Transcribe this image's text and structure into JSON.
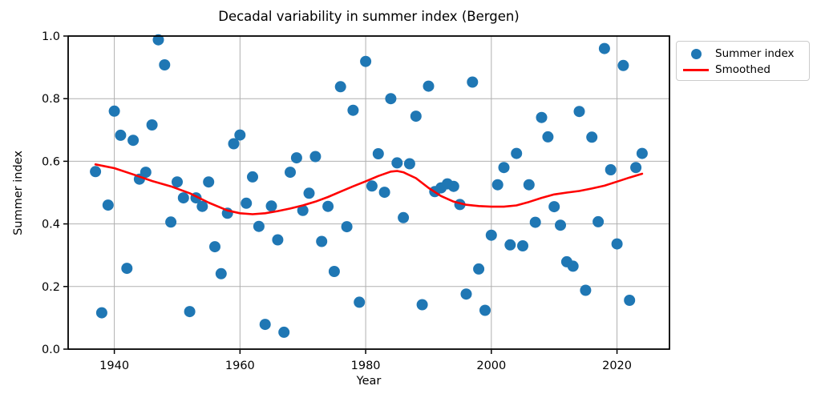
{
  "figure": {
    "title": "Decadal variability in summer index (Bergen)",
    "xlabel": "Year",
    "ylabel": "Summer index"
  },
  "legend": {
    "entries": [
      {
        "label": "Summer index",
        "marker": "dot-icon",
        "color": "#1f77b4"
      },
      {
        "label": "Smoothed",
        "marker": "line-icon",
        "color": "#ff0000"
      }
    ]
  },
  "colors": {
    "scatter": "#1f77b4",
    "smoothed_line": "#ff0000",
    "grid": "#b0b0b0",
    "spine": "#000000",
    "background": "#ffffff"
  },
  "chart_data": {
    "type": "scatter",
    "title": "Decadal variability in summer index (Bergen)",
    "xlabel": "Year",
    "ylabel": "Summer index",
    "xlim": [
      1932.65,
      2028.35
    ],
    "ylim": [
      0,
      1
    ],
    "xticks": [
      1940,
      1960,
      1980,
      2000,
      2020
    ],
    "ytick_labels": [
      "0.0",
      "0.2",
      "0.4",
      "0.6",
      "0.8",
      "1.0"
    ],
    "yticks": [
      0.0,
      0.2,
      0.4,
      0.6,
      0.8,
      1.0
    ],
    "grid": true,
    "legend_position": "outside upper right",
    "series": [
      {
        "name": "Summer index",
        "type": "scatter",
        "color": "#1f77b4",
        "marker_radius": 7,
        "x": [
          1937,
          1938,
          1939,
          1940,
          1941,
          1942,
          1943,
          1944,
          1945,
          1946,
          1947,
          1948,
          1949,
          1950,
          1951,
          1952,
          1953,
          1954,
          1955,
          1956,
          1957,
          1958,
          1959,
          1960,
          1961,
          1962,
          1963,
          1964,
          1965,
          1966,
          1967,
          1968,
          1969,
          1970,
          1971,
          1972,
          1973,
          1974,
          1975,
          1976,
          1977,
          1978,
          1979,
          1980,
          1981,
          1982,
          1983,
          1984,
          1985,
          1986,
          1987,
          1988,
          1989,
          1990,
          1991,
          1992,
          1993,
          1994,
          1995,
          1996,
          1997,
          1998,
          1999,
          2000,
          2001,
          2002,
          2003,
          2004,
          2005,
          2006,
          2007,
          2008,
          2009,
          2010,
          2011,
          2012,
          2013,
          2014,
          2015,
          2016,
          2017,
          2018,
          2019,
          2020,
          2021,
          2022,
          2023,
          2024
        ],
        "y": [
          0.567,
          0.116,
          0.46,
          0.76,
          0.683,
          0.258,
          0.667,
          0.543,
          0.565,
          0.716,
          0.988,
          0.908,
          0.406,
          0.534,
          0.483,
          0.12,
          0.483,
          0.456,
          0.534,
          0.327,
          0.241,
          0.434,
          0.656,
          0.684,
          0.466,
          0.55,
          0.392,
          0.079,
          0.457,
          0.349,
          0.054,
          0.565,
          0.611,
          0.443,
          0.498,
          0.615,
          0.344,
          0.456,
          0.248,
          0.838,
          0.391,
          0.763,
          0.15,
          0.919,
          0.521,
          0.624,
          0.501,
          0.8,
          0.595,
          0.42,
          0.592,
          0.744,
          0.142,
          0.84,
          0.503,
          0.515,
          0.528,
          0.52,
          0.462,
          0.176,
          0.853,
          0.256,
          0.124,
          0.364,
          0.525,
          0.58,
          0.333,
          0.625,
          0.33,
          0.525,
          0.405,
          0.74,
          0.678,
          0.455,
          0.396,
          0.279,
          0.265,
          0.759,
          0.188,
          0.677,
          0.407,
          0.96,
          0.573,
          0.336,
          0.906,
          0.156,
          0.58,
          0.625
        ]
      },
      {
        "name": "Smoothed",
        "type": "line",
        "color": "#ff0000",
        "line_width": 2.6,
        "x": [
          1937,
          1940,
          1943,
          1946,
          1949,
          1952,
          1955,
          1958,
          1960,
          1962,
          1964,
          1966,
          1968,
          1970,
          1972,
          1974,
          1976,
          1978,
          1980,
          1982,
          1984,
          1985,
          1986,
          1988,
          1990,
          1992,
          1994,
          1996,
          1998,
          2000,
          2002,
          2004,
          2006,
          2008,
          2010,
          2012,
          2014,
          2016,
          2018,
          2020,
          2022,
          2024
        ],
        "y": [
          0.59,
          0.578,
          0.558,
          0.537,
          0.52,
          0.498,
          0.468,
          0.443,
          0.434,
          0.431,
          0.434,
          0.441,
          0.449,
          0.459,
          0.471,
          0.486,
          0.503,
          0.52,
          0.536,
          0.553,
          0.567,
          0.569,
          0.565,
          0.546,
          0.515,
          0.489,
          0.471,
          0.461,
          0.457,
          0.455,
          0.455,
          0.459,
          0.47,
          0.483,
          0.494,
          0.5,
          0.505,
          0.513,
          0.522,
          0.535,
          0.548,
          0.56
        ]
      }
    ]
  }
}
